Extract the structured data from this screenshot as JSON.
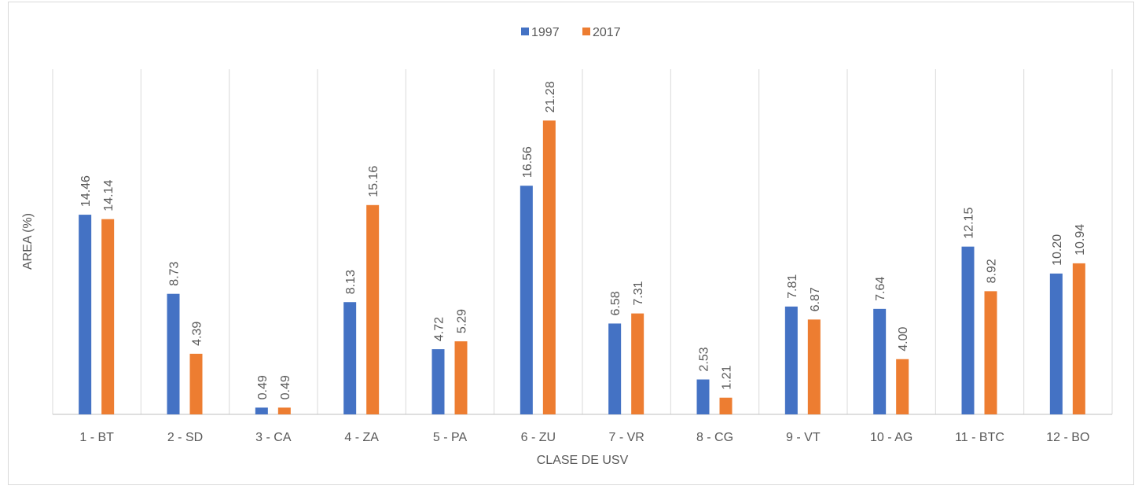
{
  "chart_data": {
    "type": "bar",
    "x_label": "CLASE DE USV",
    "y_label": "AREA (%)",
    "categories": [
      "1 - BT",
      "2 - SD",
      "3 - CA",
      "4 - ZA",
      "5 - PA",
      "6 - ZU",
      "7 - VR",
      "8 - CG",
      "9 - VT",
      "10 - AG",
      "11 - BTC",
      "12 - BO"
    ],
    "series": [
      {
        "name": "1997",
        "color": "#4472c4",
        "values": [
          14.46,
          8.73,
          0.49,
          8.13,
          4.72,
          16.56,
          6.58,
          2.53,
          7.81,
          7.64,
          12.15,
          10.2
        ],
        "value_labels": [
          "14.46",
          "8.73",
          "0.49",
          "8.13",
          "4.72",
          "16.56",
          "6.58",
          "2.53",
          "7.81",
          "7.64",
          "12.15",
          "10.20"
        ]
      },
      {
        "name": "2017",
        "color": "#ed7d31",
        "values": [
          14.14,
          4.39,
          0.49,
          15.16,
          5.29,
          21.28,
          7.31,
          1.21,
          6.87,
          4.0,
          8.92,
          10.94
        ],
        "value_labels": [
          "14.14",
          "4.39",
          "0.49",
          "15.16",
          "5.29",
          "21.28",
          "7.31",
          "1.21",
          "6.87",
          "4.00",
          "8.92",
          "10.94"
        ]
      }
    ],
    "ylim": [
      0,
      25
    ],
    "legend": "top"
  }
}
